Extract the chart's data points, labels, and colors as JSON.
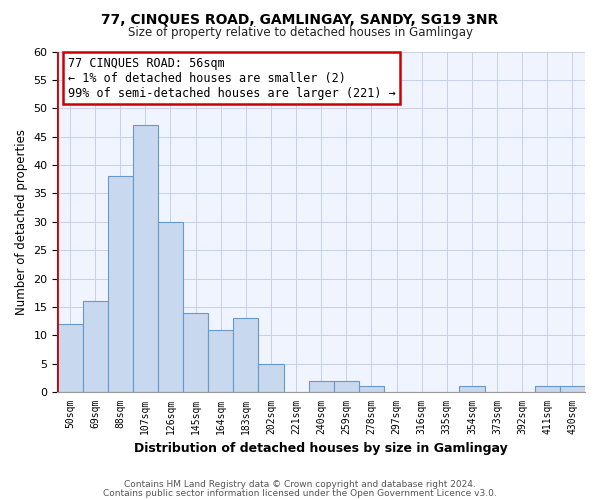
{
  "title": "77, CINQUES ROAD, GAMLINGAY, SANDY, SG19 3NR",
  "subtitle": "Size of property relative to detached houses in Gamlingay",
  "xlabel": "Distribution of detached houses by size in Gamlingay",
  "ylabel": "Number of detached properties",
  "footer_line1": "Contains HM Land Registry data © Crown copyright and database right 2024.",
  "footer_line2": "Contains public sector information licensed under the Open Government Licence v3.0.",
  "bar_labels": [
    "50sqm",
    "69sqm",
    "88sqm",
    "107sqm",
    "126sqm",
    "145sqm",
    "164sqm",
    "183sqm",
    "202sqm",
    "221sqm",
    "240sqm",
    "259sqm",
    "278sqm",
    "297sqm",
    "316sqm",
    "335sqm",
    "354sqm",
    "373sqm",
    "392sqm",
    "411sqm",
    "430sqm"
  ],
  "bar_values": [
    12,
    16,
    38,
    47,
    30,
    14,
    11,
    13,
    5,
    0,
    2,
    2,
    1,
    0,
    0,
    0,
    1,
    0,
    0,
    1,
    1
  ],
  "bar_color": "#c8d8ee",
  "bar_edge_color": "#6699cc",
  "ylim": [
    0,
    60
  ],
  "yticks": [
    0,
    5,
    10,
    15,
    20,
    25,
    30,
    35,
    40,
    45,
    50,
    55,
    60
  ],
  "annotation_line1": "77 CINQUES ROAD: 56sqm",
  "annotation_line2": "← 1% of detached houses are smaller (2)",
  "annotation_line3": "99% of semi-detached houses are larger (221) →",
  "ann_box_color": "#cc0000",
  "red_line_color": "#cc0000",
  "background_color": "#ffffff",
  "plot_bg_color": "#f0f4ff",
  "grid_color": "#c8d0e8"
}
